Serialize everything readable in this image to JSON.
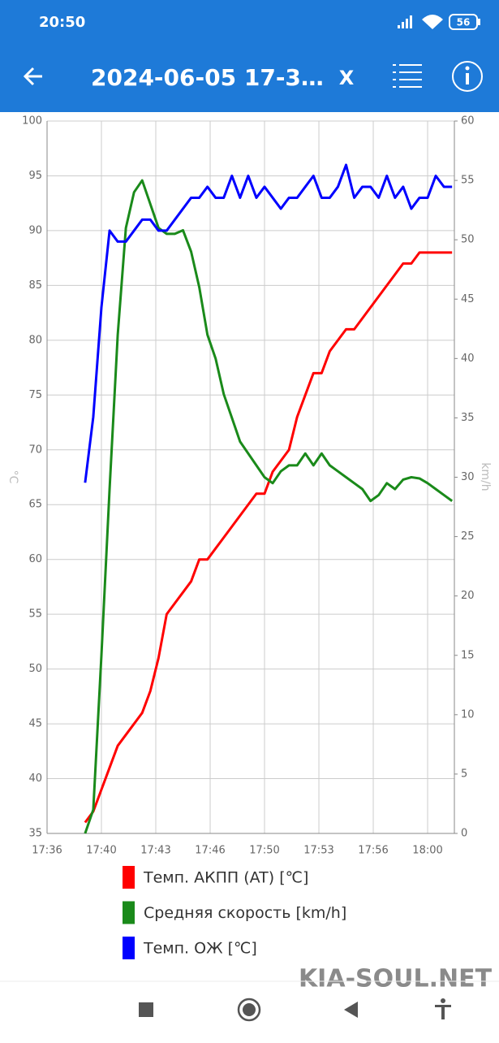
{
  "status_bar": {
    "time": "20:50",
    "battery": "56"
  },
  "app_bar": {
    "title": "2024-06-05 17-3…",
    "close": "X"
  },
  "chart_data": {
    "type": "line",
    "ylabel": "°C",
    "y2label": "km/h",
    "x": [
      1058.5,
      1059,
      1059.5,
      1060,
      1060.5,
      1061,
      1061.5,
      1062,
      1062.5,
      1063,
      1063.5,
      1064,
      1064.5,
      1065,
      1065.5,
      1066,
      1066.5,
      1067,
      1067.5,
      1068,
      1068.5,
      1069,
      1069.5,
      1070,
      1070.5,
      1071,
      1071.5,
      1072,
      1072.5,
      1073,
      1073.5,
      1074,
      1074.5,
      1075,
      1075.5,
      1076,
      1076.5,
      1077,
      1077.5,
      1078,
      1078.5,
      1079,
      1079.5,
      1080,
      1080.5,
      1081,
      1081.5
    ],
    "xlim": [
      1056.667,
      1081.64
    ],
    "xticks": [
      {
        "value": 1056.667,
        "label": "17:36"
      },
      {
        "value": 1060,
        "label": "17:40"
      },
      {
        "value": 1063.333,
        "label": "17:43"
      },
      {
        "value": 1066.667,
        "label": "17:46"
      },
      {
        "value": 1070,
        "label": "17:50"
      },
      {
        "value": 1073.333,
        "label": "17:53"
      },
      {
        "value": 1076.667,
        "label": "17:56"
      },
      {
        "value": 1080,
        "label": "18:00"
      }
    ],
    "ylim": [
      35,
      100
    ],
    "yticks": [
      35,
      40,
      45,
      50,
      55,
      60,
      65,
      70,
      75,
      80,
      85,
      90,
      95,
      100
    ],
    "y2lim": [
      0,
      60
    ],
    "y2ticks": [
      0,
      5,
      10,
      15,
      20,
      25,
      30,
      35,
      40,
      45,
      50,
      55,
      60
    ],
    "grid": true,
    "series": [
      {
        "name": "Темп. АКПП (AT) [℃]",
        "color": "#ff0000",
        "values": [
          null,
          36,
          37,
          39,
          41,
          43,
          44,
          45,
          46,
          48,
          51,
          55,
          56,
          57,
          58,
          60,
          60,
          61,
          62,
          63,
          64,
          65,
          66,
          66,
          68,
          69,
          70,
          73,
          75,
          77,
          77,
          79,
          80,
          81,
          81,
          82,
          83,
          84,
          85,
          86,
          87,
          87,
          88,
          88,
          88,
          88,
          88
        ]
      },
      {
        "name": "Средняя скорость [km/h]",
        "color": "#1a8a1a",
        "axis": "y2",
        "values": [
          null,
          0,
          2,
          15,
          29,
          42,
          51,
          54,
          55,
          53,
          51,
          50.5,
          50.5,
          50.8,
          49,
          46,
          42,
          40,
          37,
          35,
          33,
          32,
          31,
          30,
          29.5,
          30.5,
          31,
          31,
          32,
          31,
          32,
          31,
          30.5,
          30,
          29.5,
          29,
          28,
          28.5,
          29.5,
          29,
          29.8,
          30,
          29.9,
          29.5,
          29,
          28.5,
          28
        ]
      },
      {
        "name": "Темп. ОЖ [℃]",
        "color": "#0000ff",
        "values": [
          null,
          67,
          73,
          83,
          90,
          89,
          89,
          90,
          91,
          91,
          90,
          90,
          91,
          92,
          93,
          93,
          94,
          93,
          93,
          95,
          93,
          95,
          93,
          94,
          93,
          92,
          93,
          93,
          94,
          95,
          93,
          93,
          94,
          96,
          93,
          94,
          94,
          93,
          95,
          93,
          94,
          92,
          93,
          93,
          95,
          94,
          94
        ]
      }
    ]
  },
  "watermark": "KIA-SOUL.NET"
}
